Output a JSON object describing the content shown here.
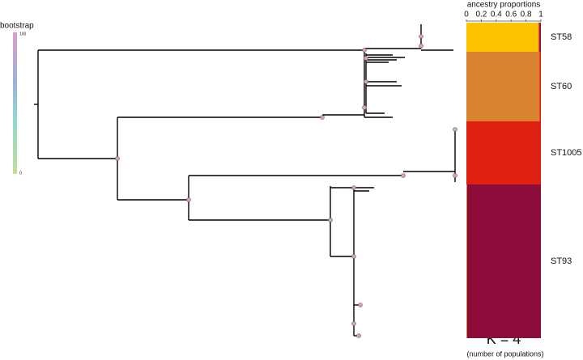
{
  "chart_data": {
    "type": "stacked-horizontal-bar",
    "title": "ancestry proportions",
    "categories": [
      "ST58",
      "ST60",
      "ST1005",
      "ST93"
    ],
    "series": [
      {
        "color": "#fcc400",
        "values": [
          0.97,
          0,
          0,
          0
        ]
      },
      {
        "color": "#d98530",
        "values": [
          0,
          0.98,
          0,
          0.01
        ]
      },
      {
        "color": "#e02010",
        "values": [
          0.01,
          0.02,
          1,
          0
        ]
      },
      {
        "color": "#8e0c3c",
        "values": [
          0.02,
          0,
          0,
          0.99
        ]
      }
    ],
    "xlim": [
      0,
      1
    ],
    "xticks": [
      0,
      0.2,
      0.4,
      0.6,
      0.8,
      1
    ],
    "annotation": "K = 4",
    "annotation_note": "(number of populations)",
    "colorbar": {
      "title": "bootstrap",
      "ticks": [
        100,
        0
      ]
    }
  }
}
